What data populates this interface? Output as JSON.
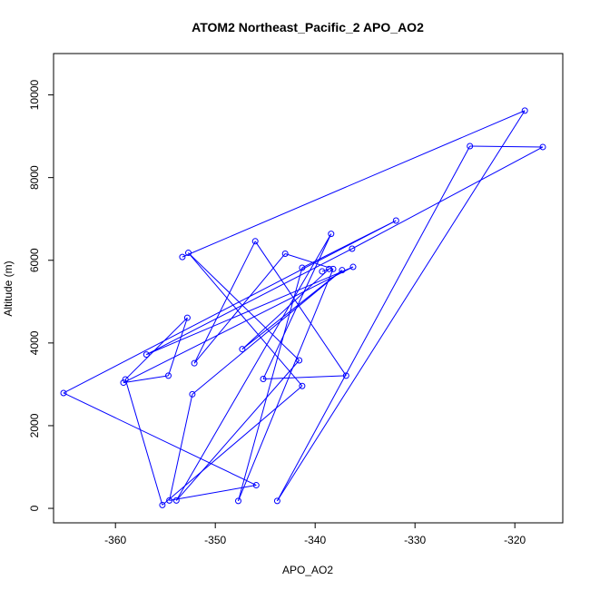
{
  "chart_data": {
    "type": "line",
    "title": "ATOM2 Northeast_Pacific_2 APO_AO2",
    "xlabel": "APO_AO2",
    "ylabel": "Altitude (m)",
    "xlim": [
      -366.2,
      -315.2
    ],
    "ylim": [
      -350,
      11000
    ],
    "x_ticks": [
      -360,
      -350,
      -340,
      -330,
      -320
    ],
    "y_ticks": [
      0,
      2000,
      4000,
      6000,
      8000,
      10000
    ],
    "x_tick_labels": [
      "-360",
      "-350",
      "-340",
      "-330",
      "-320"
    ],
    "y_tick_labels": [
      "0",
      "2000",
      "4000",
      "6000",
      "8000",
      "10000"
    ],
    "series_color": "#0000ff",
    "grid": false,
    "series": [
      {
        "x": [
          -353.3,
          -319.0,
          -343.8,
          -324.5,
          -317.2,
          -336.3,
          -356.9,
          -336.2,
          -359.2,
          -354.7,
          -352.8,
          -359.0,
          -355.3,
          -341.3,
          -352.7,
          -341.6,
          -353.9,
          -338.4,
          -345.2,
          -336.9,
          -346.0,
          -352.1,
          -343.0,
          -338.2,
          -347.7,
          -341.3,
          -331.9,
          -365.2,
          -345.9,
          -354.6,
          -352.3,
          -337.3,
          -347.3,
          -338.6,
          -339.3
        ],
        "y": [
          6080,
          9620,
          180,
          8760,
          8740,
          6280,
          3720,
          5840,
          3040,
          3210,
          4610,
          3120,
          80,
          2960,
          6180,
          3580,
          190,
          6640,
          3130,
          3210,
          6460,
          3510,
          6160,
          5790,
          180,
          5820,
          6960,
          2790,
          560,
          190,
          2760,
          5760,
          3850,
          5790,
          5730
        ]
      }
    ]
  }
}
